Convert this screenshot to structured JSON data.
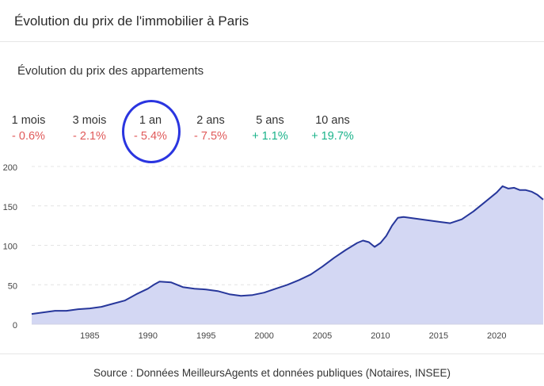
{
  "header": {
    "title": "Évolution du prix de l'immobilier à Paris"
  },
  "subtitle": "Évolution du prix des appartements",
  "periods": [
    {
      "label": "1 mois",
      "value": "- 0.6%",
      "trend": "neg"
    },
    {
      "label": "3 mois",
      "value": "- 2.1%",
      "trend": "neg"
    },
    {
      "label": "1 an",
      "value": "- 5.4%",
      "trend": "neg",
      "highlighted": true
    },
    {
      "label": "2 ans",
      "value": "- 7.5%",
      "trend": "neg"
    },
    {
      "label": "5 ans",
      "value": "+ 1.1%",
      "trend": "pos"
    },
    {
      "label": "10 ans",
      "value": "+ 19.7%",
      "trend": "pos"
    }
  ],
  "colors": {
    "line": "#27379b",
    "area": "#d3d7f3",
    "negative": "#e05a5a",
    "positive": "#1ab38a",
    "highlight": "#2a35e0"
  },
  "chart_data": {
    "type": "area",
    "title": "",
    "xlabel": "",
    "ylabel": "",
    "xlim": [
      1980,
      2024
    ],
    "ylim": [
      0,
      200
    ],
    "yticks": [
      0,
      50,
      100,
      150,
      200
    ],
    "xticks": [
      1985,
      1990,
      1995,
      2000,
      2005,
      2010,
      2015,
      2020
    ],
    "grid": true,
    "legend": "none",
    "x": [
      1980,
      1981,
      1982,
      1983,
      1984,
      1985,
      1986,
      1987,
      1988,
      1989,
      1990,
      1990.5,
      1991,
      1992,
      1993,
      1994,
      1995,
      1996,
      1997,
      1998,
      1999,
      2000,
      2001,
      2002,
      2003,
      2004,
      2005,
      2006,
      2007,
      2008,
      2008.5,
      2009,
      2009.5,
      2010,
      2010.5,
      2011,
      2011.5,
      2012,
      2013,
      2014,
      2015,
      2016,
      2017,
      2018,
      2019,
      2020,
      2020.5,
      2021,
      2021.5,
      2022,
      2022.5,
      2023,
      2023.5,
      2024
    ],
    "y": [
      13,
      15,
      17,
      17,
      19,
      20,
      22,
      26,
      30,
      38,
      45,
      50,
      54,
      53,
      47,
      45,
      44,
      42,
      38,
      36,
      37,
      40,
      45,
      50,
      56,
      63,
      73,
      84,
      94,
      103,
      106,
      104,
      98,
      103,
      112,
      125,
      135,
      136,
      134,
      132,
      130,
      128,
      133,
      143,
      155,
      167,
      175,
      172,
      173,
      170,
      170,
      168,
      164,
      158
    ],
    "source": "Source : Données MeilleursAgents et données publiques (Notaires, INSEE)"
  }
}
